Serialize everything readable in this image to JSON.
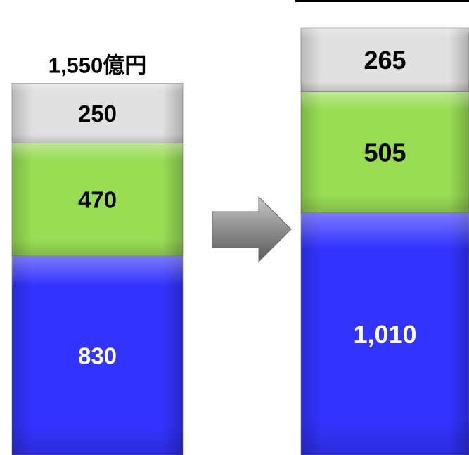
{
  "chart_data": {
    "type": "bar",
    "stacked": true,
    "categories": [
      "",
      ""
    ],
    "series": [
      {
        "values": [
          830,
          1010
        ],
        "color": "#3333ff",
        "label_color": "#ffffff"
      },
      {
        "values": [
          470,
          505
        ],
        "color": "#99dd55",
        "label_color": "#000000"
      },
      {
        "values": [
          250,
          265
        ],
        "color": "#e0e0e0",
        "label_color": "#000000"
      }
    ],
    "segment_labels": [
      [
        "830",
        "470",
        "250"
      ],
      [
        "1,010",
        "505",
        "265"
      ]
    ],
    "totals": [
      "1,550億円",
      ""
    ],
    "arrow": "right-arrow-icon",
    "legend": "none",
    "grid": false
  }
}
